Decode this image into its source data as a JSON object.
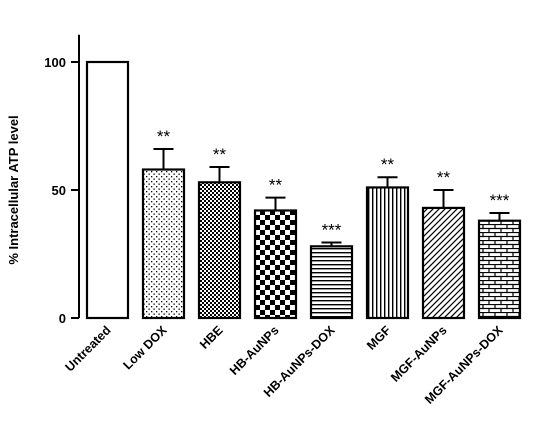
{
  "chart_data": {
    "type": "bar",
    "ylabel": "% Intracellular ATP level",
    "ylim": [
      0,
      120
    ],
    "yticks": [
      0,
      50,
      100
    ],
    "categories": [
      "Untreated",
      "Low DOX",
      "HBE",
      "HB-AuNPs",
      "HB-AuNPs-DOX",
      "MGF",
      "MGF-AuNPs",
      "MGF-AuNPs-DOX"
    ],
    "values": [
      100,
      58,
      53,
      42,
      28,
      51,
      43,
      38
    ],
    "errors": [
      0,
      8,
      6,
      5,
      1.5,
      4,
      7,
      3
    ],
    "significance": [
      "",
      "**",
      "**",
      "**",
      "***",
      "**",
      "**",
      "***"
    ],
    "patterns": [
      "none",
      "dots",
      "checker-small",
      "checker-large",
      "horizontal-lines",
      "vertical-lines",
      "diagonal-lines",
      "bricks"
    ],
    "bar_color": "#000000",
    "background": "#ffffff"
  }
}
